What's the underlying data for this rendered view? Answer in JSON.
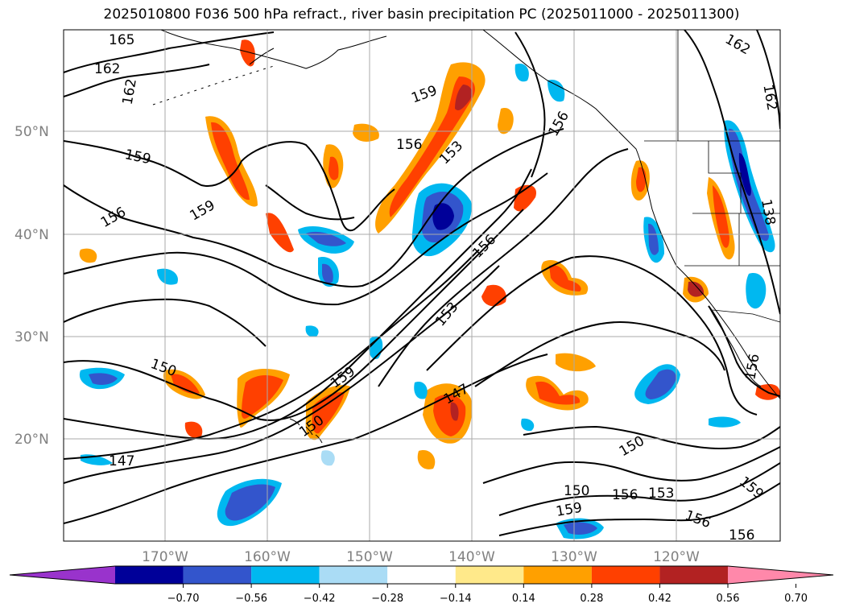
{
  "title": "2025010800 F036 500 hPa refract., river basin precipitation PC (2025011000 - 2025011300)",
  "map": {
    "lat_labels": [
      "50°N",
      "40°N",
      "30°N",
      "20°N"
    ],
    "lon_labels": [
      "170°W",
      "160°W",
      "150°W",
      "140°W",
      "130°W",
      "120°W"
    ],
    "contour_labels": [
      "165",
      "162",
      "162",
      "162",
      "162",
      "159",
      "159",
      "159",
      "159",
      "159",
      "159",
      "156",
      "156",
      "156",
      "156",
      "156",
      "156",
      "156",
      "156",
      "153",
      "153",
      "153",
      "150",
      "150",
      "150",
      "150",
      "147",
      "147",
      "138"
    ]
  },
  "colorbar": {
    "tick_labels": [
      "−0.70",
      "−0.56",
      "−0.42",
      "−0.28",
      "−0.14",
      "0.14",
      "0.28",
      "0.42",
      "0.56",
      "0.70"
    ],
    "colors": [
      "#9933cc",
      "#000099",
      "#3355cc",
      "#00b8f0",
      "#aadcf5",
      "#ffffff",
      "#ffe98a",
      "#ffa000",
      "#ff4000",
      "#b22222",
      "#ff88aa"
    ]
  }
}
